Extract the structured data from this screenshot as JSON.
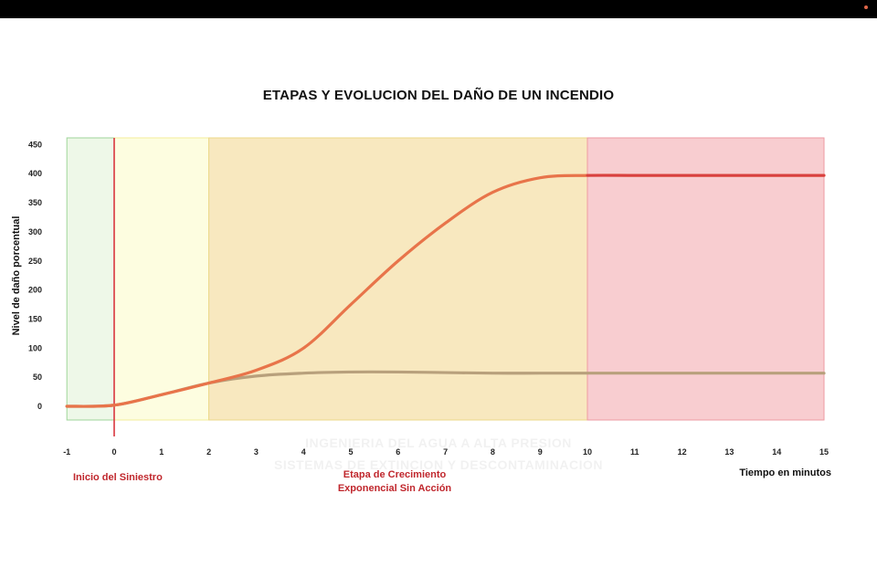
{
  "chart_data": {
    "type": "line",
    "title": "ETAPAS Y EVOLUCION DEL DAÑO DE UN INCENDIO",
    "xlabel": "Tiempo en minutos",
    "ylabel": "Nivel de daño porcentual",
    "xlim": [
      -1,
      15
    ],
    "ylim": [
      -25,
      465
    ],
    "x_ticks": [
      -1,
      0,
      1,
      2,
      3,
      4,
      5,
      6,
      7,
      8,
      9,
      10,
      11,
      12,
      13,
      14,
      15
    ],
    "y_ticks": [
      0,
      50,
      100,
      150,
      200,
      250,
      300,
      350,
      400,
      450
    ],
    "grid": false,
    "bands": [
      {
        "x0": -1,
        "x1": 0,
        "color": "#eef8e8",
        "border": "#9fd59a"
      },
      {
        "x0": 0,
        "x1": 2,
        "color": "#fdfde0",
        "border": "#f3ee9a"
      },
      {
        "x0": 2,
        "x1": 10,
        "color": "#f8e8bf",
        "border": "#ecd88a"
      },
      {
        "x0": 10,
        "x1": 15,
        "color": "#f8cdd0",
        "border": "#ee9aa2"
      }
    ],
    "marker_line": {
      "x": 0,
      "color": "#d9363e"
    },
    "series": [
      {
        "color": "#b8a07c",
        "x": [
          -1,
          0,
          1,
          2,
          3,
          4,
          5,
          6,
          7,
          8,
          9,
          10,
          11,
          12,
          13,
          14,
          15
        ],
        "values": [
          0,
          2,
          20,
          40,
          52,
          57,
          59,
          59,
          58,
          57,
          57,
          57,
          57,
          57,
          57,
          57,
          57
        ]
      },
      {
        "color": "#e8744a",
        "x": [
          -1,
          0,
          1,
          2,
          3,
          4,
          5,
          6,
          7,
          8,
          9,
          10,
          11,
          12,
          13,
          14,
          15
        ],
        "values": [
          0,
          2,
          20,
          40,
          62,
          100,
          175,
          250,
          315,
          368,
          393,
          397,
          397,
          397,
          397,
          397,
          397
        ]
      }
    ],
    "plateau_color": "#d94040",
    "annotations": [
      {
        "lines": [
          "Inicio del Siniestro"
        ],
        "color": "#c0272d"
      },
      {
        "lines": [
          "Etapa de Crecimiento",
          "Exponencial Sin Acción"
        ],
        "color": "#c0272d"
      }
    ],
    "watermark": [
      "INGENIERIA DEL AGUA A ALTA PRESION",
      "SISTEMAS DE EXTINCION Y DESCONTAMINACION"
    ]
  }
}
